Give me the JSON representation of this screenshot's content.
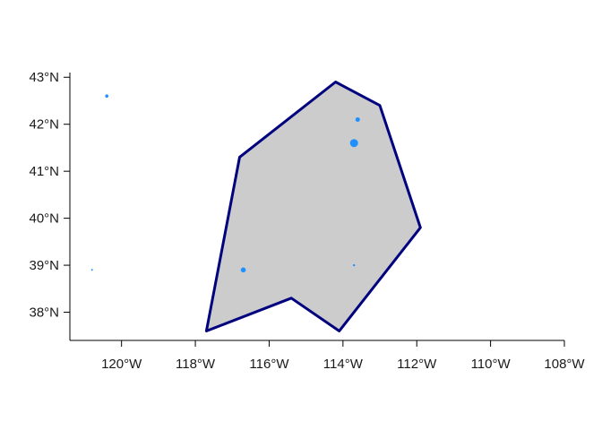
{
  "chart_data": {
    "type": "scatter",
    "title": "",
    "xlabel": "",
    "ylabel": "",
    "xlim": [
      -121.4,
      -108
    ],
    "ylim": [
      37.4,
      43.1
    ],
    "x_ticks": [
      {
        "value": -120,
        "label": "120°W"
      },
      {
        "value": -118,
        "label": "118°W"
      },
      {
        "value": -116,
        "label": "116°W"
      },
      {
        "value": -114,
        "label": "114°W"
      },
      {
        "value": -112,
        "label": "112°W"
      },
      {
        "value": -110,
        "label": "110°W"
      },
      {
        "value": -108,
        "label": "108°W"
      }
    ],
    "y_ticks": [
      {
        "value": 38,
        "label": "38°N"
      },
      {
        "value": 39,
        "label": "39°N"
      },
      {
        "value": 40,
        "label": "40°N"
      },
      {
        "value": 41,
        "label": "41°N"
      },
      {
        "value": 42,
        "label": "42°N"
      },
      {
        "value": 43,
        "label": "43°N"
      }
    ],
    "grid": false,
    "polygon": {
      "fill": "#cccccc",
      "stroke": "#00007f",
      "vertices": [
        [
          -117.7,
          37.6
        ],
        [
          -116.8,
          41.3
        ],
        [
          -114.2,
          42.9
        ],
        [
          -113.0,
          42.4
        ],
        [
          -111.9,
          39.8
        ],
        [
          -114.1,
          37.6
        ],
        [
          -115.4,
          38.3
        ],
        [
          -117.7,
          37.6
        ]
      ]
    },
    "points": {
      "color": "#1e90ff",
      "items": [
        {
          "lon": -120.4,
          "lat": 42.6,
          "size": 1.8
        },
        {
          "lon": -120.8,
          "lat": 38.9,
          "size": 1.0
        },
        {
          "lon": -116.7,
          "lat": 38.9,
          "size": 2.8
        },
        {
          "lon": -113.6,
          "lat": 42.1,
          "size": 2.5
        },
        {
          "lon": -113.7,
          "lat": 41.6,
          "size": 4.5
        },
        {
          "lon": -113.7,
          "lat": 39.0,
          "size": 1.2
        }
      ]
    }
  }
}
